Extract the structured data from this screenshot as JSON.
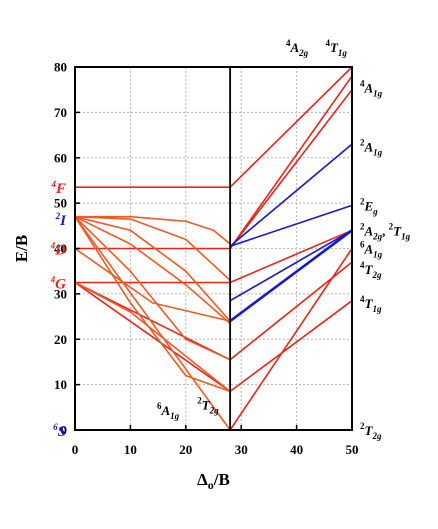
{
  "chart_data": {
    "type": "line",
    "xlabel": "Δo/B",
    "ylabel": "E/B",
    "xlim": [
      0,
      50
    ],
    "ylim": [
      0,
      80
    ],
    "xticks": [
      0,
      10,
      20,
      30,
      40,
      50
    ],
    "yticks": [
      0,
      10,
      20,
      30,
      40,
      50,
      60,
      70,
      80
    ],
    "grid": true,
    "vertical_line_x": 28,
    "colors": {
      "red": "#e8241a",
      "orange": "#ee5a24",
      "blue": "#1616d8",
      "black": "#000000"
    },
    "left_terms": [
      {
        "sup": "4",
        "sym": "F",
        "y": 53.5,
        "color": "red"
      },
      {
        "sup": "2",
        "sym": "I",
        "y": 46.5,
        "color": "blue"
      },
      {
        "sup": "4",
        "sym": "D",
        "y": 40.0,
        "color": "red"
      },
      {
        "sup": "4",
        "sym": "G",
        "y": 32.5,
        "color": "red"
      },
      {
        "sup": "6",
        "sym": "S",
        "y": 0.0,
        "color": "blue"
      }
    ],
    "right_terms": [
      {
        "sup": "4",
        "sym": "A",
        "sub": "1g",
        "y": 75.5
      },
      {
        "sup": "2",
        "sym": "A",
        "sub": "1g",
        "y": 62.5
      },
      {
        "sup": "2",
        "sym": "E",
        "sub": "g",
        "y": 49.5
      },
      {
        "sup": "2",
        "sym": "A",
        "sub": "2g",
        "sym2": "T",
        "sub2": "1g",
        "y": 44.0
      },
      {
        "sup": "6",
        "sym": "A",
        "sub": "1g",
        "y": 40.0
      },
      {
        "sup": "4",
        "sym": "T",
        "sub": "2g",
        "y": 35.5
      },
      {
        "sup": "4",
        "sym": "T",
        "sub": "1g",
        "y": 28.0
      },
      {
        "sup": "2",
        "sym": "T",
        "sub": "2g",
        "y": 0.0
      }
    ],
    "top_terms": [
      {
        "sup": "4",
        "sym": "A",
        "sub": "2g",
        "x": 41
      },
      {
        "sup": "4",
        "sym": "T",
        "sub": "1g",
        "x": 48
      }
    ],
    "inner_terms": [
      {
        "sup": "6",
        "sym": "A",
        "sub": "1g",
        "x": 16.8,
        "y": 3.3
      },
      {
        "sup": "2",
        "sym": "T",
        "sub": "2g",
        "x": 24,
        "y": 4.5
      }
    ],
    "series": [
      {
        "color": "red",
        "points": [
          [
            0,
            53.5
          ],
          [
            28,
            53.5
          ],
          [
            50,
            80
          ]
        ]
      },
      {
        "color": "red",
        "points": [
          [
            0,
            40
          ],
          [
            28,
            40
          ],
          [
            50,
            78
          ]
        ]
      },
      {
        "color": "red",
        "points": [
          [
            28,
            40
          ],
          [
            50,
            75
          ]
        ]
      },
      {
        "color": "red",
        "points": [
          [
            0,
            32.5
          ],
          [
            28,
            32.5
          ],
          [
            50,
            44
          ]
        ]
      },
      {
        "color": "red",
        "points": [
          [
            0,
            32.5
          ],
          [
            28,
            15.5
          ],
          [
            50,
            37
          ]
        ]
      },
      {
        "color": "red",
        "points": [
          [
            0,
            32.5
          ],
          [
            28,
            8.5
          ],
          [
            50,
            28.5
          ]
        ]
      },
      {
        "color": "red",
        "points": [
          [
            28,
            0
          ],
          [
            50,
            40
          ]
        ]
      },
      {
        "color": "orange",
        "points": [
          [
            0,
            47
          ],
          [
            10,
            47
          ],
          [
            20,
            46
          ],
          [
            25,
            44
          ],
          [
            28,
            41
          ]
        ]
      },
      {
        "color": "orange",
        "points": [
          [
            0,
            47
          ],
          [
            10,
            46.5
          ],
          [
            20,
            42
          ],
          [
            28,
            33
          ]
        ]
      },
      {
        "color": "orange",
        "points": [
          [
            0,
            47
          ],
          [
            10,
            44
          ],
          [
            20,
            35
          ],
          [
            28,
            24
          ]
        ]
      },
      {
        "color": "orange",
        "points": [
          [
            0,
            47
          ],
          [
            10,
            41
          ],
          [
            20,
            32
          ],
          [
            28,
            23.5
          ]
        ]
      },
      {
        "color": "orange",
        "points": [
          [
            0,
            47
          ],
          [
            10,
            35
          ],
          [
            20,
            20
          ],
          [
            28,
            15.5
          ]
        ]
      },
      {
        "color": "orange",
        "points": [
          [
            0,
            47
          ],
          [
            10,
            28
          ],
          [
            20,
            12
          ],
          [
            28,
            8.5
          ]
        ]
      },
      {
        "color": "orange",
        "points": [
          [
            0,
            47
          ],
          [
            28,
            0
          ]
        ]
      },
      {
        "color": "orange",
        "points": [
          [
            0,
            40
          ],
          [
            14,
            28
          ],
          [
            28,
            24
          ]
        ]
      },
      {
        "color": "orange",
        "points": [
          [
            0,
            32.5
          ],
          [
            10,
            26
          ],
          [
            28,
            8.5
          ]
        ]
      },
      {
        "color": "blue",
        "points": [
          [
            0,
            0
          ],
          [
            50,
            0
          ]
        ]
      },
      {
        "color": "blue",
        "points": [
          [
            28,
            40.5
          ],
          [
            50,
            63
          ]
        ]
      },
      {
        "color": "blue",
        "points": [
          [
            28,
            40.5
          ],
          [
            50,
            49.5
          ]
        ]
      },
      {
        "color": "blue",
        "points": [
          [
            28,
            28.5
          ],
          [
            50,
            44
          ]
        ]
      },
      {
        "color": "blue",
        "points": [
          [
            28,
            24
          ],
          [
            50,
            44
          ]
        ],
        "bold": true
      }
    ]
  }
}
